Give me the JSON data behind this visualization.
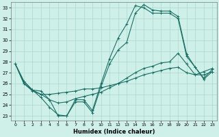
{
  "xlabel": "Humidex (Indice chaleur)",
  "bg_color": "#cff0e8",
  "line_color": "#1a6e65",
  "grid_color": "#aad8ce",
  "xlim": [
    -0.5,
    23.5
  ],
  "ylim": [
    22.6,
    33.5
  ],
  "yticks": [
    23,
    24,
    25,
    26,
    27,
    28,
    29,
    30,
    31,
    32,
    33
  ],
  "xticks": [
    0,
    1,
    2,
    3,
    4,
    5,
    6,
    7,
    8,
    9,
    10,
    11,
    12,
    13,
    14,
    15,
    16,
    17,
    18,
    19,
    20,
    21,
    22,
    23
  ],
  "series": [
    {
      "x": [
        0,
        1,
        2,
        3,
        4,
        5,
        6,
        7,
        8,
        9,
        10,
        11,
        12,
        13,
        14,
        15,
        16,
        17,
        18,
        19,
        20,
        21,
        22,
        23
      ],
      "y": [
        27.8,
        26.2,
        25.4,
        24.7,
        23.8,
        23.1,
        23.0,
        24.3,
        24.3,
        23.3,
        25.7,
        27.8,
        29.1,
        29.8,
        32.5,
        33.3,
        32.8,
        32.7,
        32.7,
        32.2,
        28.7,
        27.5,
        26.4,
        27.1
      ]
    },
    {
      "x": [
        0,
        1,
        2,
        3,
        4,
        5,
        6,
        7,
        8,
        9,
        10,
        11,
        12,
        13,
        14,
        15,
        16,
        17,
        18,
        19,
        20,
        21,
        22,
        23
      ],
      "y": [
        27.8,
        26.2,
        25.4,
        25.3,
        24.5,
        23.0,
        23.0,
        24.5,
        24.5,
        23.5,
        26.0,
        28.3,
        30.2,
        31.5,
        33.2,
        33.0,
        32.5,
        32.5,
        32.5,
        32.0,
        28.5,
        27.5,
        26.5,
        27.3
      ]
    },
    {
      "x": [
        0,
        1,
        2,
        3,
        4,
        5,
        6,
        7,
        8,
        9,
        10,
        11,
        12,
        13,
        14,
        15,
        16,
        17,
        18,
        19,
        20,
        21,
        22,
        23
      ],
      "y": [
        27.8,
        26.0,
        25.3,
        25.0,
        25.0,
        25.1,
        25.2,
        25.3,
        25.5,
        25.5,
        25.6,
        25.8,
        26.0,
        26.2,
        26.5,
        26.8,
        27.0,
        27.2,
        27.4,
        27.5,
        27.0,
        26.8,
        26.8,
        27.1
      ]
    },
    {
      "x": [
        0,
        1,
        2,
        3,
        4,
        5,
        6,
        7,
        8,
        9,
        10,
        11,
        12,
        13,
        14,
        15,
        16,
        17,
        18,
        19,
        20,
        21,
        22,
        23
      ],
      "y": [
        27.8,
        26.0,
        25.4,
        25.0,
        24.5,
        24.2,
        24.3,
        24.6,
        24.8,
        25.0,
        25.2,
        25.6,
        26.0,
        26.5,
        27.0,
        27.4,
        27.6,
        27.9,
        28.0,
        28.8,
        27.8,
        26.8,
        27.1,
        27.4
      ]
    }
  ]
}
